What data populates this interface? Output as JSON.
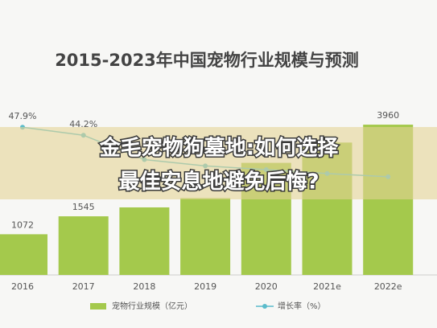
{
  "chart_data": {
    "type": "bar",
    "title": "2015-2023年中国宠物行业规模与预测",
    "categories": [
      "2016",
      "2017",
      "2018",
      "2019",
      "2020",
      "2021e",
      "2022e"
    ],
    "series": [
      {
        "name": "宠物行业规模（亿元）",
        "type": "bar",
        "color": "#a4c94c",
        "values": [
          1072,
          1545,
          1780,
          2024,
          2953,
          3488,
          3960
        ],
        "value_labels": [
          "1072",
          "1545",
          null,
          null,
          null,
          null,
          "3960"
        ]
      },
      {
        "name": "增长率（%）",
        "type": "line",
        "axis": "y2",
        "color": "#5bbccb",
        "values": [
          47.9,
          44.2,
          33.0,
          30.1,
          28.4,
          26.6,
          25.1
        ],
        "value_labels": [
          "47.9%",
          "44.2%",
          null,
          null,
          null,
          null,
          null
        ]
      }
    ],
    "ylim": [
      0,
      4300
    ],
    "y2lim": [
      -20,
      55
    ]
  },
  "overlay": {
    "lines": [
      "金毛宠物狗墓地:如何选择",
      "最佳安息地避免后悔?"
    ]
  }
}
